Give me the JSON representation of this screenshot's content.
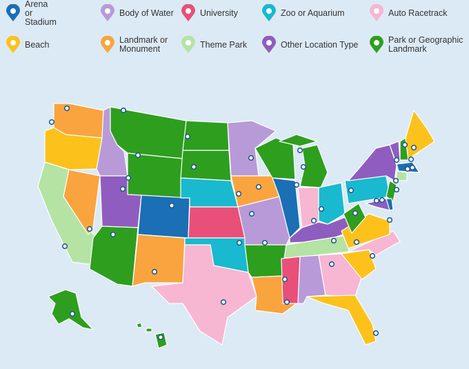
{
  "legend": [
    {
      "label": "Arena or Stadium",
      "color": "#1a6fb5"
    },
    {
      "label": "Body of Water",
      "color": "#b99ad8"
    },
    {
      "label": "University",
      "color": "#e8507a"
    },
    {
      "label": "Zoo or Aquarium",
      "color": "#19b9cf"
    },
    {
      "label": "Auto Racetrack",
      "color": "#f7b6d2"
    },
    {
      "label": "Beach",
      "color": "#fcc21b"
    },
    {
      "label": "Landmark or Monument",
      "color": "#f9a43e"
    },
    {
      "label": "Theme Park",
      "color": "#b5e3a4"
    },
    {
      "label": "Other Location Type",
      "color": "#8f5dbf"
    },
    {
      "label": "Park or Geographic Landmark",
      "color": "#2e9e1f"
    }
  ]
}
